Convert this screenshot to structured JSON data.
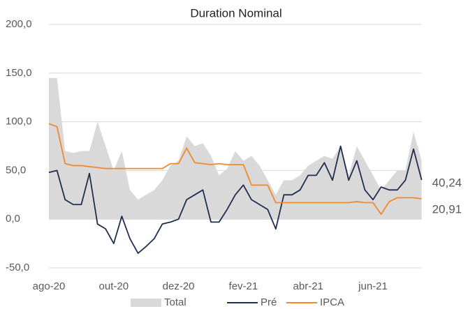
{
  "chart_data": {
    "type": "line",
    "title": "Duration Nominal",
    "categories": [
      "ago-20",
      null,
      null,
      null,
      null,
      null,
      null,
      null,
      "out-20",
      null,
      null,
      null,
      null,
      null,
      null,
      null,
      "dez-20",
      null,
      null,
      null,
      null,
      null,
      null,
      null,
      "fev-21",
      null,
      null,
      null,
      null,
      null,
      null,
      null,
      "abr-21",
      null,
      null,
      null,
      null,
      null,
      null,
      null,
      "jun-21",
      null,
      null,
      null,
      null,
      null,
      null
    ],
    "series": [
      {
        "name": "Total",
        "kind": "area",
        "color": "#d9d9d9",
        "values": [
          145,
          145,
          70,
          68,
          70,
          70,
          100,
          75,
          50,
          70,
          30,
          20,
          25,
          30,
          40,
          55,
          60,
          85,
          75,
          78,
          65,
          45,
          52,
          70,
          60,
          65,
          55,
          40,
          25,
          40,
          40,
          45,
          55,
          60,
          65,
          62,
          75,
          45,
          75,
          60,
          45,
          30,
          40,
          50,
          50,
          90,
          60
        ]
      },
      {
        "name": "Pré",
        "kind": "line",
        "color": "#1f2d4e",
        "values": [
          48,
          50,
          20,
          15,
          15,
          47,
          -5,
          -10,
          -25,
          3,
          -20,
          -35,
          -28,
          -20,
          -5,
          -3,
          0,
          20,
          25,
          30,
          -3,
          -3,
          10,
          25,
          35,
          20,
          15,
          10,
          -10,
          25,
          25,
          30,
          45,
          45,
          58,
          40,
          75,
          40,
          60,
          30,
          20,
          33,
          30,
          30,
          40,
          72,
          40.24
        ],
        "value_labels": [
          null,
          null,
          null,
          null,
          null,
          null,
          null,
          null,
          null,
          null,
          null,
          null,
          null,
          null,
          null,
          null,
          null,
          null,
          null,
          null,
          null,
          null,
          null,
          null,
          null,
          null,
          null,
          null,
          null,
          null,
          null,
          null,
          null,
          null,
          null,
          null,
          null,
          null,
          null,
          null,
          null,
          null,
          null,
          null,
          null,
          null,
          "40,24"
        ]
      },
      {
        "name": "IPCA",
        "kind": "line",
        "color": "#f0892b",
        "values": [
          98,
          95,
          57,
          55,
          55,
          54,
          53,
          52,
          52,
          52,
          52,
          52,
          52,
          52,
          52,
          57,
          57,
          73,
          58,
          57,
          56,
          57,
          56,
          56,
          56,
          35,
          35,
          35,
          17,
          17,
          17,
          17,
          17,
          17,
          17,
          17,
          17,
          17,
          18,
          17,
          17,
          5,
          18,
          22,
          22,
          22,
          20.91
        ],
        "value_labels": [
          null,
          null,
          null,
          null,
          null,
          null,
          null,
          null,
          null,
          null,
          null,
          null,
          null,
          null,
          null,
          null,
          null,
          null,
          null,
          null,
          null,
          null,
          null,
          null,
          null,
          null,
          null,
          null,
          null,
          null,
          null,
          null,
          null,
          null,
          null,
          null,
          null,
          null,
          null,
          null,
          null,
          null,
          null,
          null,
          null,
          null,
          "20,91"
        ]
      }
    ],
    "ylim": [
      -50,
      200
    ],
    "yticks": [
      {
        "value": -50,
        "label": "-50,0"
      },
      {
        "value": 0,
        "label": "0,0"
      },
      {
        "value": 50,
        "label": "50,0"
      },
      {
        "value": 100,
        "label": "100,0"
      },
      {
        "value": 150,
        "label": "150,0"
      },
      {
        "value": 200,
        "label": "200,0"
      }
    ],
    "grid": true,
    "legend": "bottom"
  }
}
